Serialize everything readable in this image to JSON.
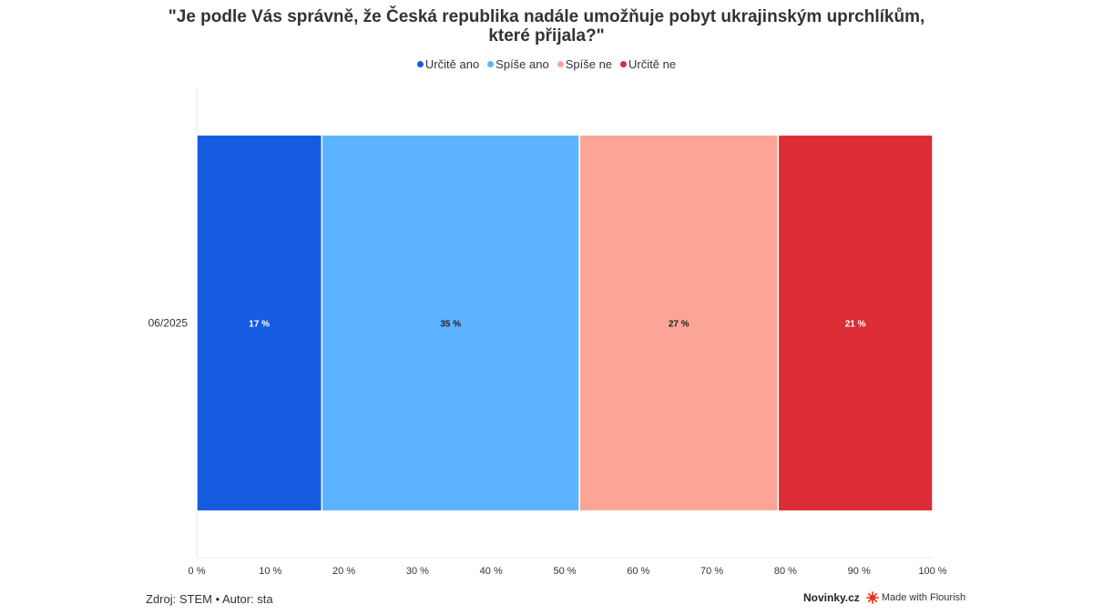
{
  "chart_data": {
    "type": "bar",
    "orientation": "horizontal",
    "stacked": true,
    "title": "\"Je podle Vás správně, že Česká republika nadále umožňuje pobyt ukrajinským uprchlíkům, které přijala?\"",
    "categories": [
      "06/2025"
    ],
    "series": [
      {
        "name": "Určitě ano",
        "values": [
          17
        ],
        "color": "#155ce0",
        "label_color": "#ffffff"
      },
      {
        "name": "Spíše ano",
        "values": [
          35
        ],
        "color": "#5cb3ff",
        "label_color": "#222222"
      },
      {
        "name": "Spíše ne",
        "values": [
          27
        ],
        "color": "#fca597",
        "label_color": "#222222"
      },
      {
        "name": "Určitě ne",
        "values": [
          21
        ],
        "color": "#dc2c35",
        "label_color": "#ffffff"
      }
    ],
    "data_labels": [
      "17 %",
      "35 %",
      "27 %",
      "21 %"
    ],
    "xlim": [
      0,
      100
    ],
    "x_ticks": [
      0,
      10,
      20,
      30,
      40,
      50,
      60,
      70,
      80,
      90,
      100
    ],
    "x_tick_labels": [
      "0 %",
      "10 %",
      "20 %",
      "30 %",
      "40 %",
      "50 %",
      "60 %",
      "70 %",
      "80 %",
      "90 %",
      "100 %"
    ],
    "legend_position": "top-center",
    "grid": false
  },
  "footer": {
    "source": "Zdroj: STEM • Autor: sta",
    "brand": "Novinky.cz",
    "credit": "Made with Flourish"
  },
  "colors": {
    "text": "#333333",
    "flourish": "#e8371f"
  }
}
